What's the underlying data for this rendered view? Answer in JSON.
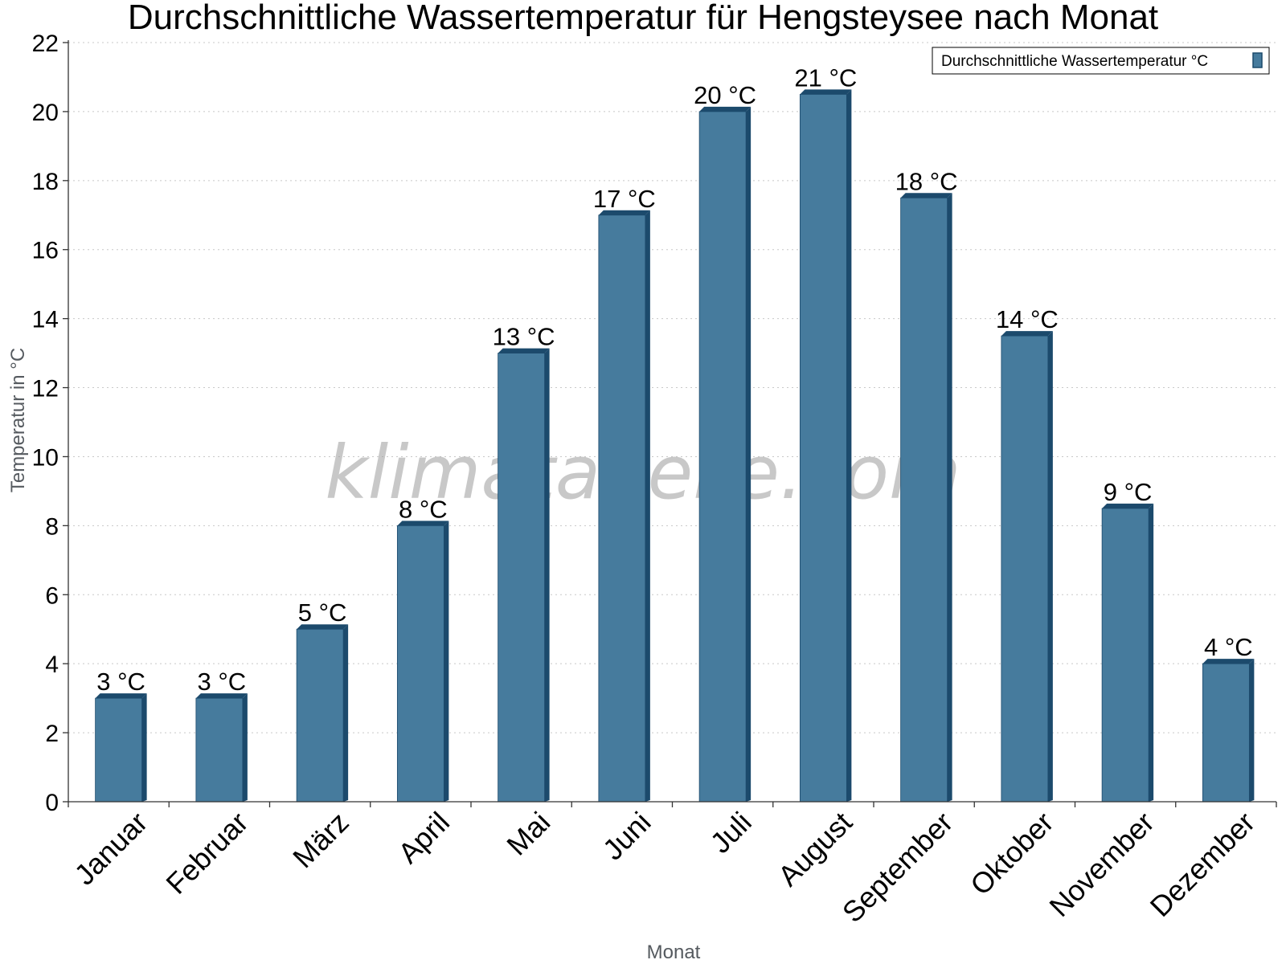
{
  "chart_data": {
    "type": "bar",
    "title": "Durchschnittliche Wassertemperatur für Hengsteysee nach Monat",
    "xlabel": "Monat",
    "ylabel": "Temperatur in °C",
    "ylim": [
      0,
      22
    ],
    "yticks": [
      0,
      2,
      4,
      6,
      8,
      10,
      12,
      14,
      16,
      18,
      20,
      22
    ],
    "grid": true,
    "legend_position": "top-right",
    "categories": [
      "Januar",
      "Februar",
      "März",
      "April",
      "Mai",
      "Juni",
      "Juli",
      "August",
      "September",
      "Oktober",
      "November",
      "Dezember"
    ],
    "series": [
      {
        "name": "Durchschnittliche Wassertemperatur °C",
        "values": [
          3,
          3,
          5,
          8,
          13,
          17,
          20,
          20.5,
          17.5,
          13.5,
          8.5,
          4
        ],
        "data_labels": [
          "3 °C",
          "3 °C",
          "5 °C",
          "8 °C",
          "13 °C",
          "17 °C",
          "20 °C",
          "21 °C",
          "18 °C",
          "14 °C",
          "9 °C",
          "4 °C"
        ],
        "color": "#467b9d",
        "shade_color": "#1c4a6c"
      }
    ],
    "watermark": "klimatabelle.com"
  }
}
